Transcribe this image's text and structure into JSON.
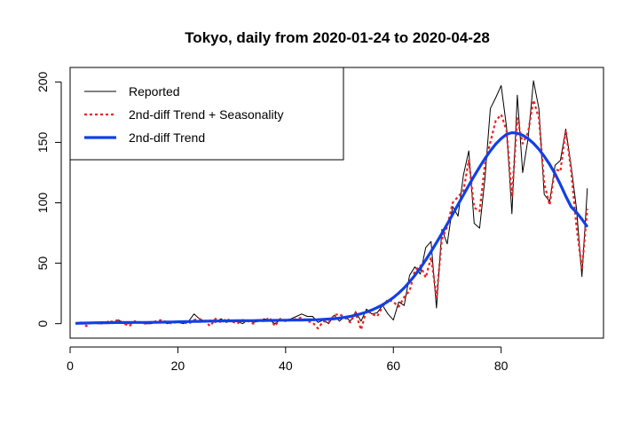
{
  "chart_data": {
    "type": "line",
    "title": "Tokyo, daily from 2020-01-24 to 2020-04-28",
    "xlabel": "",
    "ylabel": "",
    "xlim": [
      0,
      99
    ],
    "ylim": [
      -12,
      212
    ],
    "x_ticks": [
      0,
      20,
      40,
      60,
      80
    ],
    "y_ticks": [
      0,
      50,
      100,
      150,
      200
    ],
    "grid": false,
    "legend_position": "top-left",
    "series": [
      {
        "name": "Reported",
        "color": "#000000",
        "style": "solid",
        "x": [
          1,
          2,
          3,
          4,
          5,
          6,
          7,
          8,
          9,
          10,
          11,
          12,
          13,
          14,
          15,
          16,
          17,
          18,
          19,
          20,
          21,
          22,
          23,
          24,
          25,
          26,
          27,
          28,
          29,
          30,
          31,
          32,
          33,
          34,
          35,
          36,
          37,
          38,
          39,
          40,
          41,
          42,
          43,
          44,
          45,
          46,
          47,
          48,
          49,
          50,
          51,
          52,
          53,
          54,
          55,
          56,
          57,
          58,
          59,
          60,
          61,
          62,
          63,
          64,
          65,
          66,
          67,
          68,
          69,
          70,
          71,
          72,
          73,
          74,
          75,
          76,
          77,
          78,
          79,
          80,
          81,
          82,
          83,
          84,
          85,
          86,
          87,
          88,
          89,
          90,
          91,
          92,
          93,
          94,
          95,
          96
        ],
        "y": [
          0,
          1,
          0,
          1,
          0,
          0,
          2,
          0,
          3,
          0,
          0,
          2,
          1,
          0,
          0,
          1,
          2,
          0,
          1,
          1,
          0,
          2,
          8,
          4,
          2,
          3,
          1,
          4,
          1,
          3,
          2,
          0,
          3,
          1,
          2,
          4,
          3,
          0,
          3,
          3,
          4,
          6,
          8,
          6,
          6,
          1,
          3,
          0,
          7,
          2,
          6,
          2,
          10,
          2,
          12,
          8,
          9,
          15,
          8,
          3,
          18,
          15,
          40,
          47,
          41,
          63,
          68,
          13,
          78,
          66,
          97,
          89,
          123,
          143,
          83,
          79,
          120,
          178,
          187,
          197,
          163,
          91,
          189,
          125,
          153,
          201,
          178,
          107,
          101,
          131,
          135,
          161,
          130,
          95,
          39,
          112
        ]
      },
      {
        "name": "2nd-diff Trend + Seasonality",
        "color": "#ee2222",
        "style": "dotted",
        "x": [
          1,
          2,
          3,
          4,
          5,
          6,
          7,
          8,
          9,
          10,
          11,
          12,
          13,
          14,
          15,
          16,
          17,
          18,
          19,
          20,
          21,
          22,
          23,
          24,
          25,
          26,
          27,
          28,
          29,
          30,
          31,
          32,
          33,
          34,
          35,
          36,
          37,
          38,
          39,
          40,
          41,
          42,
          43,
          44,
          45,
          46,
          47,
          48,
          49,
          50,
          51,
          52,
          53,
          54,
          55,
          56,
          57,
          58,
          59,
          60,
          61,
          62,
          63,
          64,
          65,
          66,
          67,
          68,
          69,
          70,
          71,
          72,
          73,
          74,
          75,
          76,
          77,
          78,
          79,
          80,
          81,
          82,
          83,
          84,
          85,
          86,
          87,
          88,
          89,
          90,
          91,
          92,
          93,
          94,
          95,
          96
        ],
        "y": [
          0,
          1,
          -2,
          1,
          1,
          0,
          1,
          2,
          3,
          0,
          -2,
          2,
          1,
          0,
          1,
          2,
          3,
          1,
          0,
          2,
          1,
          0,
          3,
          4,
          2,
          -2,
          4,
          1,
          4,
          2,
          0,
          3,
          2,
          0,
          3,
          2,
          5,
          -2,
          4,
          2,
          3,
          4,
          5,
          2,
          1,
          -4,
          2,
          1,
          7,
          8,
          5,
          1,
          9,
          -5,
          11,
          8,
          6,
          14,
          20,
          18,
          14,
          22,
          27,
          44,
          48,
          38,
          55,
          22,
          70,
          80,
          100,
          105,
          110,
          135,
          96,
          93,
          132,
          150,
          168,
          173,
          160,
          105,
          170,
          149,
          158,
          185,
          170,
          116,
          98,
          128,
          126,
          160,
          126,
          80,
          45,
          95
        ]
      },
      {
        "name": "2nd-diff Trend",
        "color": "#1140e6",
        "style": "solid",
        "x": [
          1,
          2,
          3,
          4,
          5,
          6,
          7,
          8,
          9,
          10,
          11,
          12,
          13,
          14,
          15,
          16,
          17,
          18,
          19,
          20,
          21,
          22,
          23,
          24,
          25,
          26,
          27,
          28,
          29,
          30,
          31,
          32,
          33,
          34,
          35,
          36,
          37,
          38,
          39,
          40,
          41,
          42,
          43,
          44,
          45,
          46,
          47,
          48,
          49,
          50,
          51,
          52,
          53,
          54,
          55,
          56,
          57,
          58,
          59,
          60,
          61,
          62,
          63,
          64,
          65,
          66,
          67,
          68,
          69,
          70,
          71,
          72,
          73,
          74,
          75,
          76,
          77,
          78,
          79,
          80,
          81,
          82,
          83,
          84,
          85,
          86,
          87,
          88,
          89,
          90,
          91,
          92,
          93,
          94,
          95,
          96
        ],
        "y": [
          0.3,
          0.4,
          0.5,
          0.6,
          0.7,
          0.8,
          0.8,
          0.9,
          0.9,
          0.9,
          0.9,
          1.0,
          1.0,
          1.0,
          1.1,
          1.1,
          1.2,
          1.3,
          1.4,
          1.5,
          1.6,
          1.7,
          1.8,
          1.9,
          2.0,
          2.1,
          2.2,
          2.2,
          2.3,
          2.3,
          2.4,
          2.4,
          2.5,
          2.5,
          2.6,
          2.6,
          2.7,
          2.7,
          2.8,
          2.8,
          2.9,
          3.0,
          3.0,
          3.1,
          3.2,
          3.3,
          3.5,
          3.8,
          4.1,
          4.6,
          5.2,
          6.0,
          7.0,
          8.2,
          9.6,
          11.3,
          13.3,
          15.6,
          18.4,
          21.6,
          25.3,
          29.6,
          34.6,
          40.0,
          46.0,
          52.6,
          59.6,
          67.0,
          74.6,
          82.4,
          90.4,
          98.5,
          106.5,
          114.4,
          122.2,
          129.6,
          136.6,
          143.0,
          148.6,
          153.2,
          156.6,
          158.0,
          157.6,
          155.9,
          153.1,
          149.2,
          144.3,
          138.5,
          131.8,
          124.0,
          115.2,
          105.4,
          96.6,
          92.0,
          86.4,
          80.0
        ]
      }
    ]
  }
}
